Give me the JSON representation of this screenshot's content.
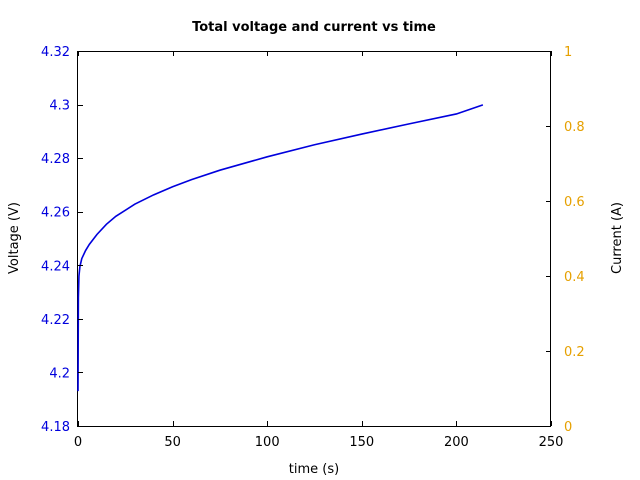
{
  "chart_data": {
    "type": "line",
    "title": "Total voltage and current vs time",
    "xlabel": "time (s)",
    "ylabel": "Voltage (V)",
    "y2label": "Current (A)",
    "xlim": [
      0,
      250
    ],
    "ylim": [
      4.18,
      4.32
    ],
    "y2lim": [
      0,
      1
    ],
    "xticks": [
      "0",
      "50",
      "100",
      "150",
      "200",
      "250"
    ],
    "yticks": [
      "4.18",
      "4.2",
      "4.22",
      "4.24",
      "4.26",
      "4.28",
      "4.3",
      "4.32"
    ],
    "y2ticks": [
      "0",
      "0.2",
      "0.4",
      "0.6",
      "0.8",
      "1"
    ],
    "grid": false,
    "colors": {
      "voltage": "#0000dd",
      "current_axis": "#e6a000",
      "axes": "#000000"
    },
    "series": [
      {
        "axis": "left",
        "x": [
          0,
          0.2,
          0.5,
          1,
          2,
          4,
          6,
          10,
          15,
          20,
          30,
          40,
          50,
          60,
          75,
          100,
          125,
          150,
          175,
          200,
          214
        ],
        "y": [
          4.193,
          4.228,
          4.236,
          4.2395,
          4.2425,
          4.2455,
          4.2478,
          4.2515,
          4.2553,
          4.2583,
          4.2628,
          4.2663,
          4.2693,
          4.272,
          4.2755,
          4.2805,
          4.285,
          4.289,
          4.2928,
          4.2965,
          4.2999
        ]
      }
    ]
  }
}
